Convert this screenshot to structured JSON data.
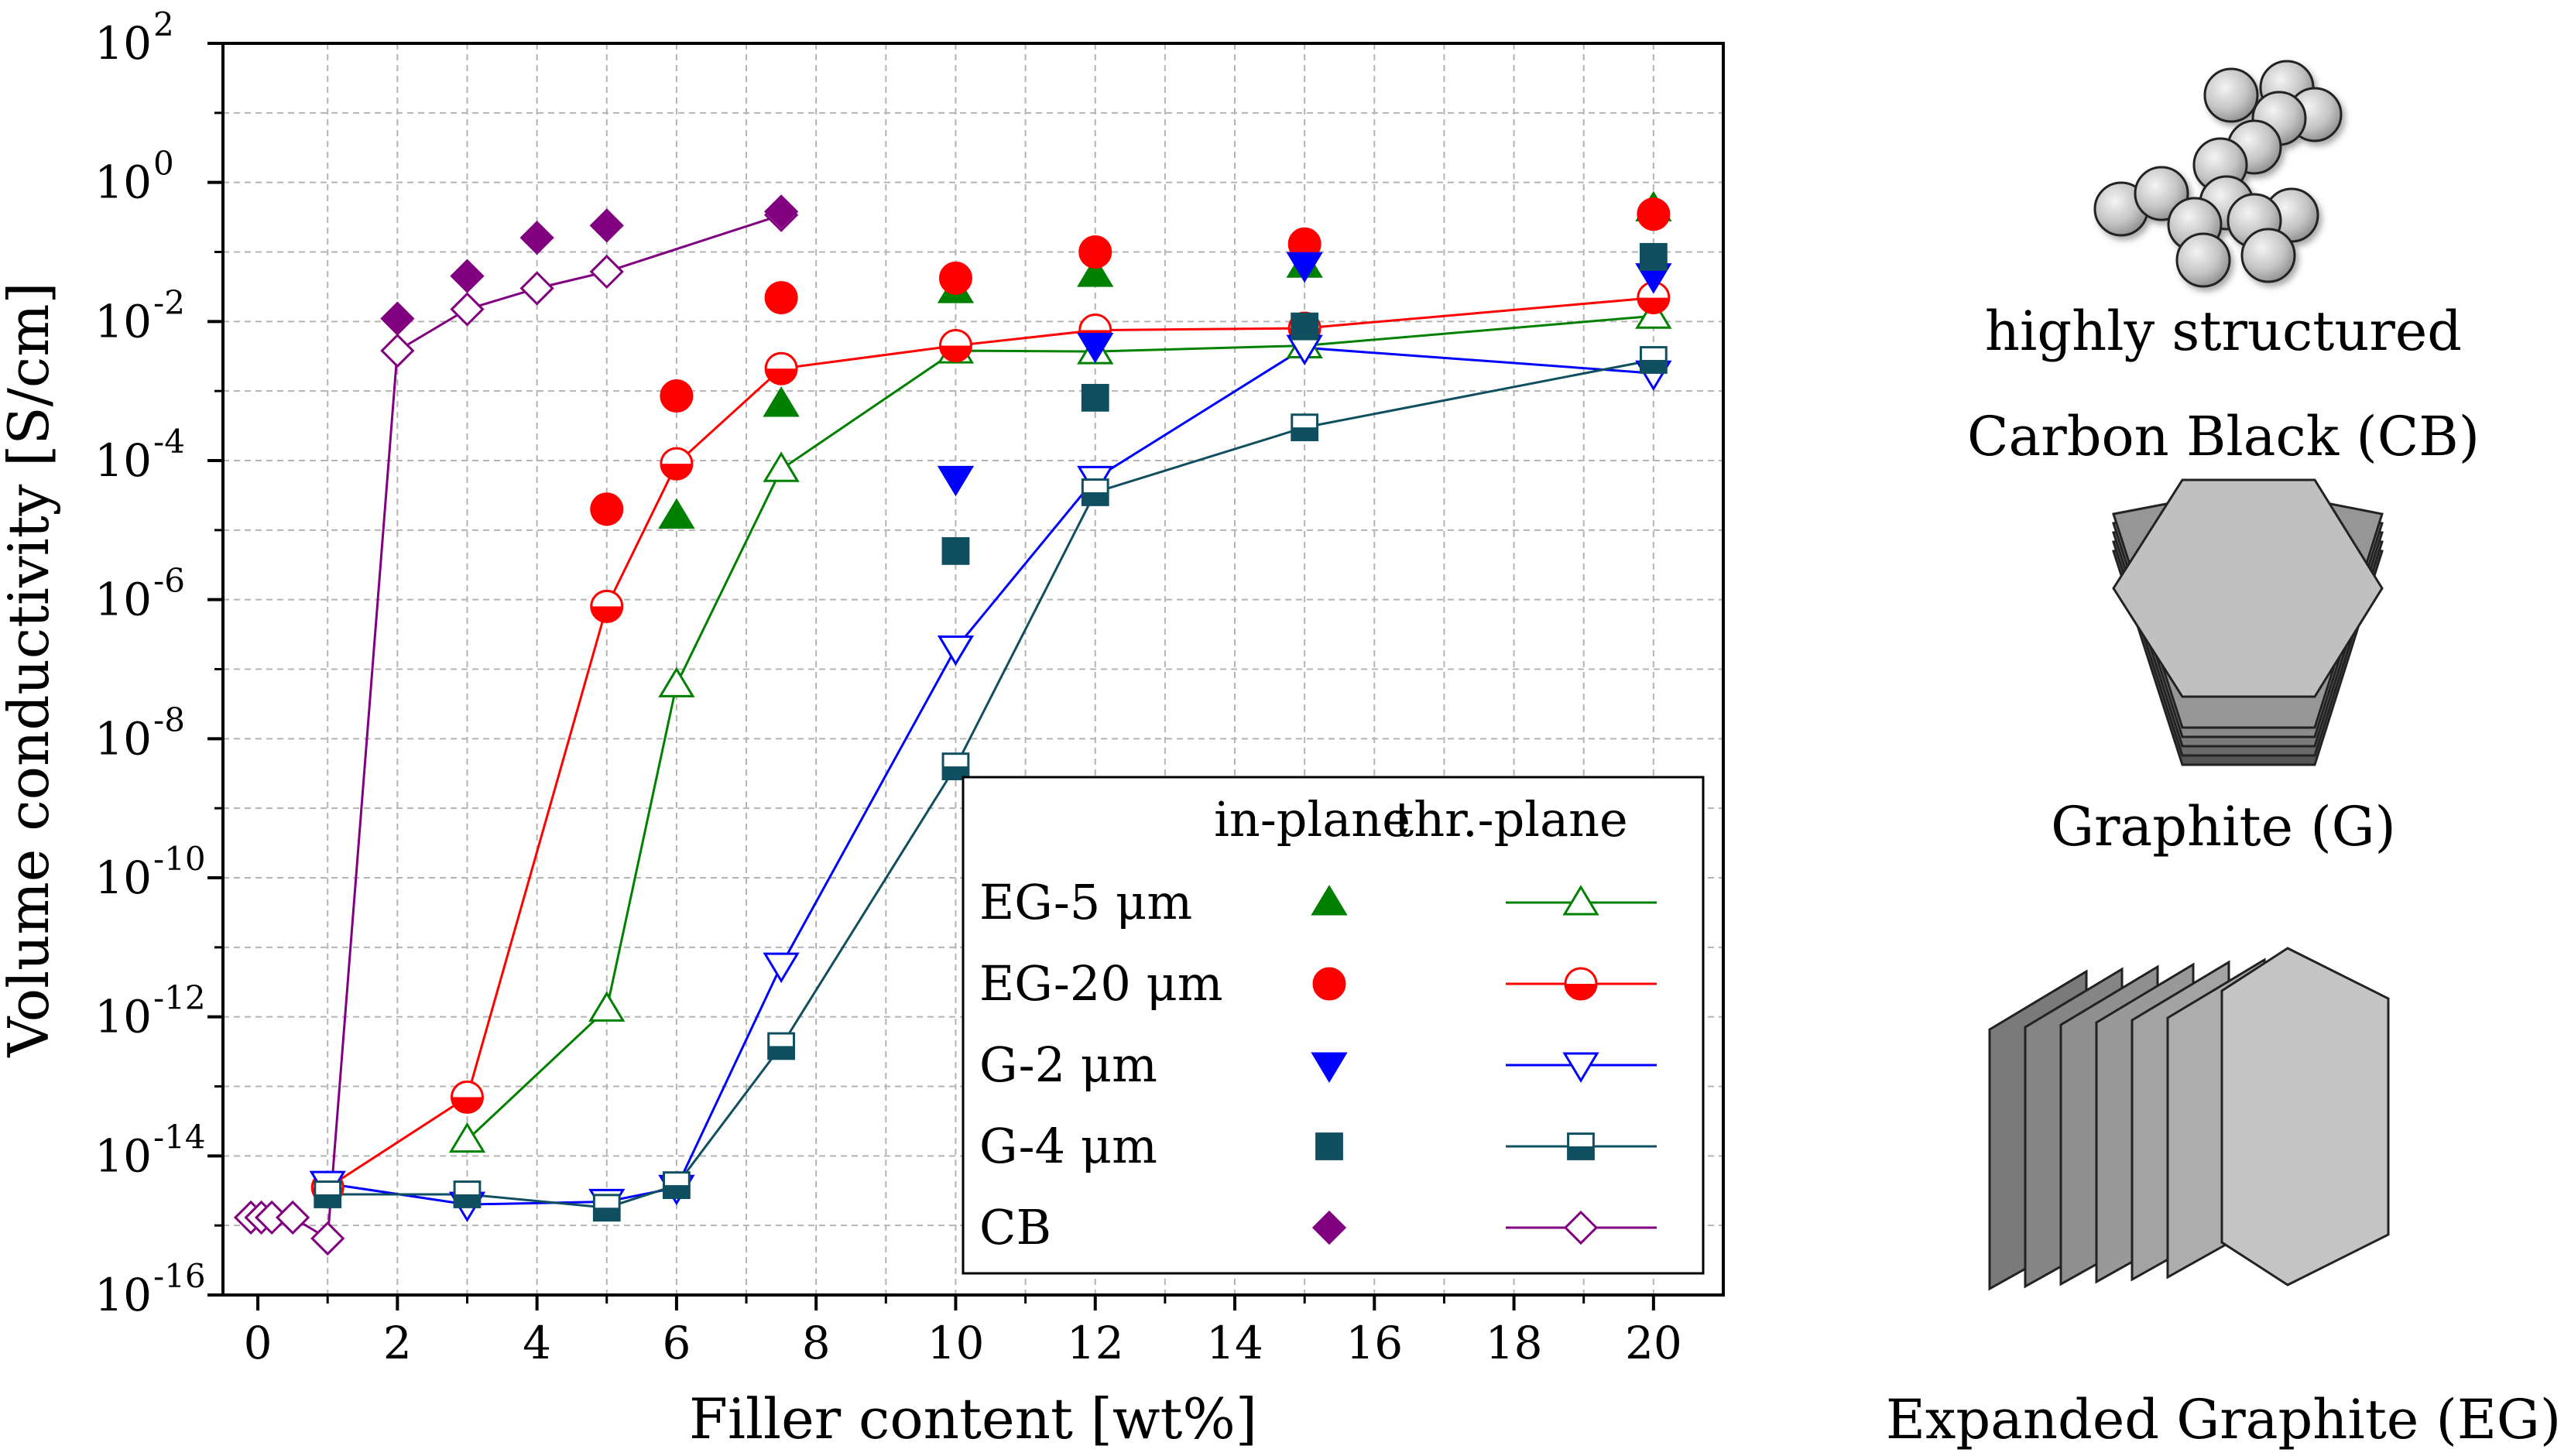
{
  "chart_data": {
    "type": "scatter",
    "title": "",
    "xlabel": "Filler content [wt%]",
    "ylabel": "Volume conductivity [S/cm]",
    "y_scale": "log",
    "xlim": [
      -0.5,
      21
    ],
    "ylim_exponent": [
      -16,
      2
    ],
    "x_ticks": [
      0,
      2,
      4,
      6,
      8,
      10,
      12,
      14,
      16,
      18,
      20
    ],
    "x_tick_labels": [
      "0",
      "2",
      "4",
      "6",
      "8",
      "10",
      "12",
      "14",
      "16",
      "18",
      "20"
    ],
    "y_tick_exponents": [
      -16,
      -14,
      -12,
      -10,
      -8,
      -6,
      -4,
      -2,
      0,
      2
    ],
    "y_tick_labels": [
      "10",
      "10",
      "10",
      "10",
      "10",
      "10",
      "10",
      "10",
      "10",
      "10"
    ],
    "y_tick_sups": [
      "-16",
      "-14",
      "-12",
      "-10",
      "-8",
      "-6",
      "-4",
      "-2",
      "0",
      "2"
    ],
    "grid": true,
    "legend": {
      "position": "bottom-right",
      "header_inplane": "in-plane",
      "header_thrplane": "thr.-plane"
    },
    "series": [
      {
        "name": "EG-5 μm",
        "color": "#008000",
        "marker": "triangle-up",
        "in_plane": [
          [
            6,
            1.6e-05
          ],
          [
            7.5,
            0.00065
          ],
          [
            10,
            0.028
          ],
          [
            12,
            0.048
          ],
          [
            15,
            0.065
          ],
          [
            20,
            0.42
          ]
        ],
        "thr_plane": [
          [
            3,
            1.7e-14
          ],
          [
            5,
            1.3e-12
          ],
          [
            6,
            6e-08
          ],
          [
            7.5,
            7.5e-05
          ],
          [
            10,
            0.0038
          ],
          [
            12,
            0.0037
          ],
          [
            15,
            0.0045
          ],
          [
            20,
            0.012
          ]
        ]
      },
      {
        "name": "EG-20 μm",
        "color": "#ff0000",
        "marker": "circle",
        "in_plane": [
          [
            5,
            2e-05
          ],
          [
            6,
            0.00085
          ],
          [
            7.5,
            0.022
          ],
          [
            10,
            0.042
          ],
          [
            12,
            0.1
          ],
          [
            15,
            0.13
          ],
          [
            20,
            0.35
          ]
        ],
        "thr_plane": [
          [
            1,
            3.5e-15
          ],
          [
            3,
            7e-14
          ],
          [
            5,
            8e-07
          ],
          [
            6,
            9e-05
          ],
          [
            7.5,
            0.0021
          ],
          [
            10,
            0.0045
          ],
          [
            12,
            0.0075
          ],
          [
            15,
            0.008
          ],
          [
            20,
            0.022
          ]
        ]
      },
      {
        "name": "G-2 μm",
        "color": "#0000ff",
        "marker": "triangle-down",
        "in_plane": [
          [
            10,
            5.5e-05
          ],
          [
            12,
            0.0045
          ],
          [
            15,
            0.065
          ],
          [
            20,
            0.045
          ]
        ],
        "thr_plane": [
          [
            1,
            4e-15
          ],
          [
            3,
            2e-15
          ],
          [
            5,
            2.2e-15
          ],
          [
            6,
            3.5e-15
          ],
          [
            7.5,
            5.5e-12
          ],
          [
            10,
            2e-07
          ],
          [
            12,
            5.5e-05
          ],
          [
            15,
            0.0042
          ],
          [
            20,
            0.0018
          ]
        ]
      },
      {
        "name": "G-4 μm",
        "color": "#0f4f5f",
        "marker": "square",
        "in_plane": [
          [
            10,
            5e-06
          ],
          [
            12,
            0.0008
          ],
          [
            15,
            0.0085
          ],
          [
            20,
            0.085
          ]
        ],
        "thr_plane": [
          [
            1,
            2.8e-15
          ],
          [
            3,
            2.8e-15
          ],
          [
            5,
            1.8e-15
          ],
          [
            6,
            3.8e-15
          ],
          [
            7.5,
            3.8e-13
          ],
          [
            10,
            4e-09
          ],
          [
            12,
            3.5e-05
          ],
          [
            15,
            0.0003
          ],
          [
            20,
            0.0028
          ]
        ]
      },
      {
        "name": "CB",
        "color": "#800080",
        "marker": "diamond",
        "in_plane": [
          [
            2,
            0.011
          ],
          [
            3,
            0.045
          ],
          [
            4,
            0.16
          ],
          [
            5,
            0.24
          ],
          [
            7.5,
            0.38
          ]
        ],
        "thr_plane": [
          [
            -0.1,
            1.3e-15
          ],
          [
            0.05,
            1.3e-15
          ],
          [
            0.2,
            1.3e-15
          ],
          [
            0.5,
            1.3e-15
          ],
          [
            1,
            6.5e-16
          ],
          [
            2,
            0.0038
          ],
          [
            3,
            0.015
          ],
          [
            4,
            0.03
          ],
          [
            5,
            0.052
          ],
          [
            7.5,
            0.34
          ]
        ]
      }
    ]
  },
  "illustrations": {
    "cb_label_line1": "highly structured",
    "cb_label_line2": "Carbon Black (CB)",
    "g_label": "Graphite (G)",
    "eg_label": "Expanded Graphite (EG)"
  }
}
